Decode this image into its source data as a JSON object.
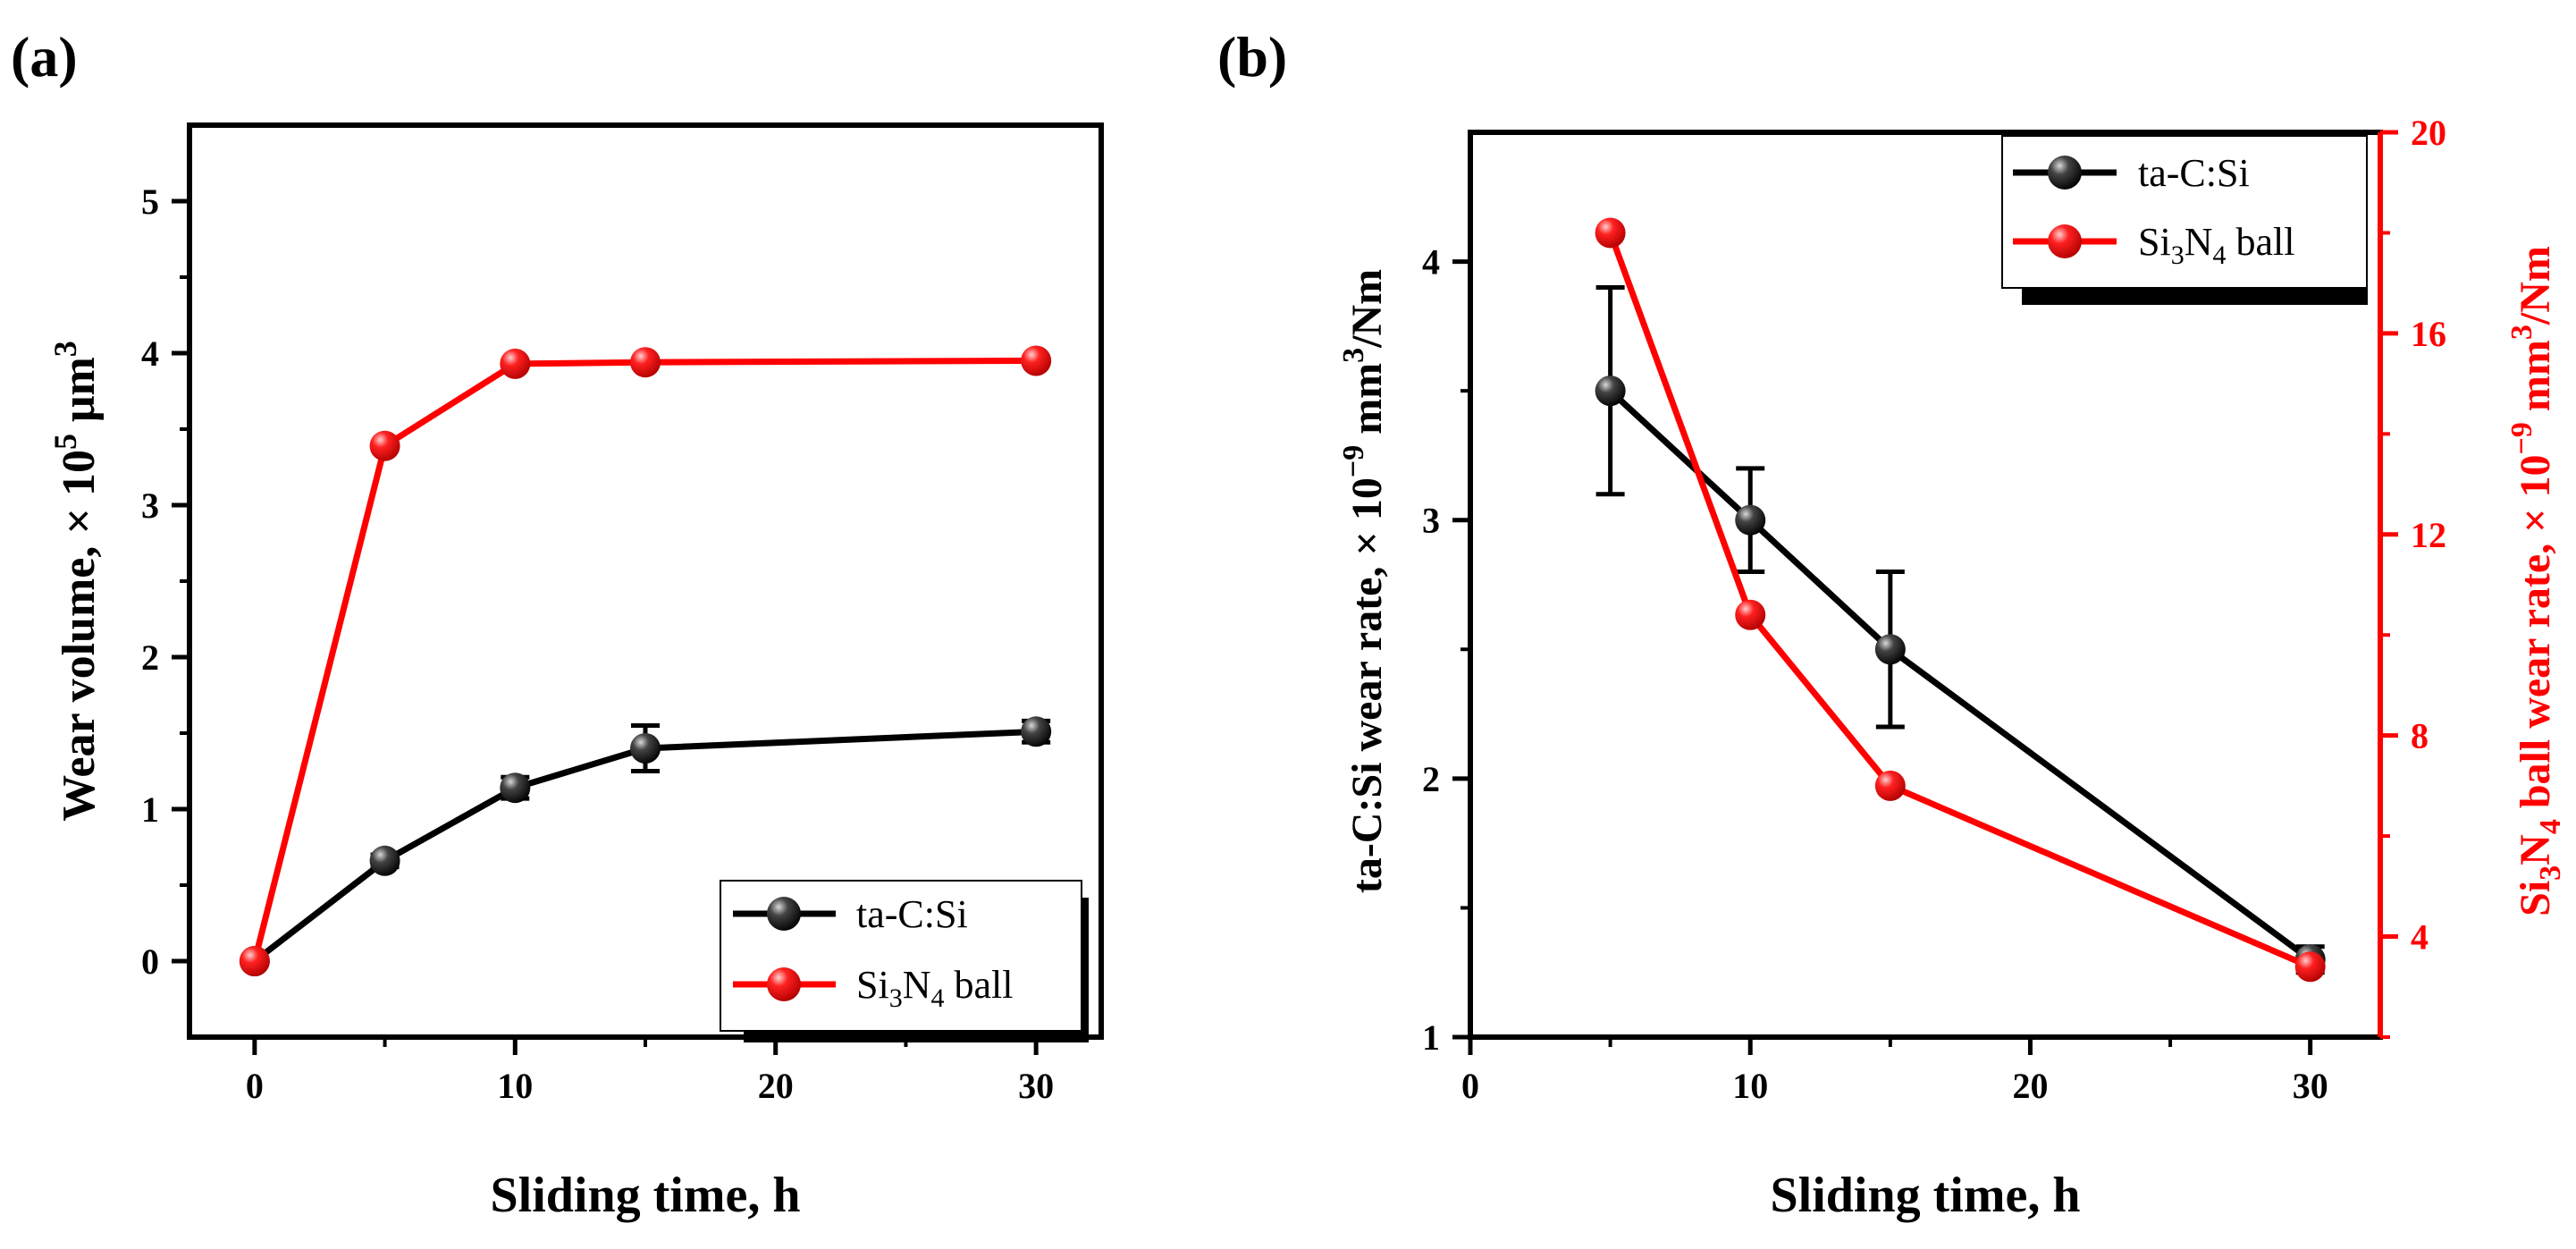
{
  "chart_data": [
    {
      "panel_label": "(a)",
      "type": "line",
      "xlabel": "Sliding time, h",
      "ylabel": {
        "main": "Wear volume, × 10",
        "sup": "5",
        "unit": " μm",
        "unit_sup": "3"
      },
      "xlim": [
        -2.5,
        32.5
      ],
      "ylim": [
        -0.5,
        5.5
      ],
      "xticks": [
        0,
        10,
        20,
        30
      ],
      "yticks": [
        0,
        1,
        2,
        3,
        4,
        5
      ],
      "legend_position": "bottom-right",
      "series": [
        {
          "name": "ta-C:Si",
          "legend": [
            {
              "t": "ta-C:Si"
            }
          ],
          "color": "#000000",
          "x": [
            0,
            5,
            10,
            15,
            30
          ],
          "y": [
            0,
            0.66,
            1.14,
            1.4,
            1.51
          ],
          "err": [
            0,
            0.04,
            0.07,
            0.15,
            0.07
          ]
        },
        {
          "name": "Si3N4 ball",
          "legend": [
            {
              "t": "Si"
            },
            {
              "t": "3",
              "s": "sub"
            },
            {
              "t": "N"
            },
            {
              "t": "4",
              "s": "sub"
            },
            {
              "t": " ball"
            }
          ],
          "color": "#ff0000",
          "x": [
            0,
            5,
            10,
            15,
            30
          ],
          "y": [
            0,
            3.39,
            3.93,
            3.94,
            3.95
          ],
          "err": [
            0,
            0,
            0,
            0,
            0
          ]
        }
      ]
    },
    {
      "panel_label": "(b)",
      "type": "line",
      "xlabel": "Sliding time, h",
      "ylabel_left": {
        "main": "ta-C:Si wear rate, × 10",
        "sup": "−9",
        "unit": " mm",
        "unit_sup": "3",
        "tail": "/Nm"
      },
      "ylabel_right": {
        "p1": "Si",
        "sub1": "3",
        "p2": "N",
        "sub2": "4",
        "p3": " ball wear rate, × 10",
        "sup1": "−9",
        "p4": " mm",
        "sup2": "3",
        "p5": "/Nm"
      },
      "xlim": [
        0,
        32.5
      ],
      "ylim_left": [
        1,
        4.5
      ],
      "ylim_right": [
        2,
        20
      ],
      "xticks": [
        0,
        10,
        20,
        30
      ],
      "yticks_left": [
        1,
        2,
        3,
        4
      ],
      "yticks_right": [
        4,
        8,
        12,
        16,
        20
      ],
      "legend_position": "top-right",
      "series": [
        {
          "name": "ta-C:Si",
          "legend": [
            {
              "t": "ta-C:Si"
            }
          ],
          "axis": "left",
          "color": "#000000",
          "x": [
            5,
            10,
            15,
            30
          ],
          "y": [
            3.5,
            3.0,
            2.5,
            1.3
          ],
          "err": [
            0.4,
            0.2,
            0.3,
            0.05
          ]
        },
        {
          "name": "Si3N4 ball",
          "legend": [
            {
              "t": "Si"
            },
            {
              "t": "3",
              "s": "sub"
            },
            {
              "t": "N"
            },
            {
              "t": "4",
              "s": "sub"
            },
            {
              "t": " ball"
            }
          ],
          "axis": "right",
          "color": "#ff0000",
          "x": [
            5,
            10,
            15,
            30
          ],
          "y": [
            18.0,
            10.4,
            7.0,
            3.4
          ],
          "err": [
            0,
            0,
            0,
            0
          ]
        }
      ]
    }
  ]
}
